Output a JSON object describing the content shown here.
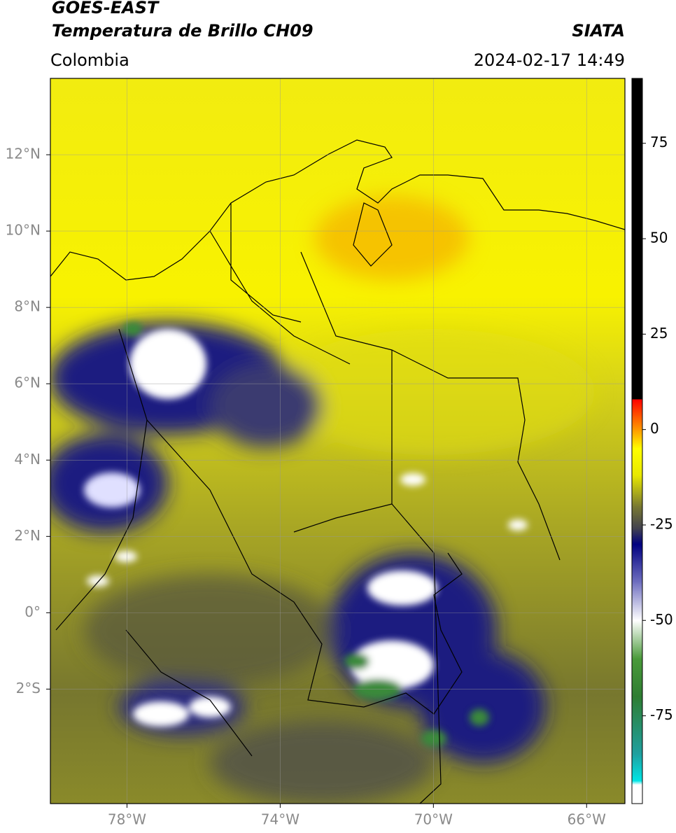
{
  "header": {
    "title_lines": [
      "GOES-EAST",
      "Temperatura de Brillo CH09"
    ],
    "source": "SIATA",
    "region": "Colombia",
    "timestamp": "2024-02-17 14:49"
  },
  "map": {
    "xlim": [
      -80,
      -65
    ],
    "xticks": [
      {
        "value": -78,
        "label": "78°W"
      },
      {
        "value": -74,
        "label": "74°W"
      },
      {
        "value": -70,
        "label": "70°W"
      },
      {
        "value": -66,
        "label": "66°W"
      }
    ],
    "ylim": [
      -5,
      14
    ],
    "yticks": [
      {
        "value": 12,
        "label": "12°N"
      },
      {
        "value": 10,
        "label": "10°N"
      },
      {
        "value": 8,
        "label": "8°N"
      },
      {
        "value": 6,
        "label": "6°N"
      },
      {
        "value": 4,
        "label": "4°N"
      },
      {
        "value": 2,
        "label": "2°N"
      },
      {
        "value": 0,
        "label": "0°"
      },
      {
        "value": -2,
        "label": "2°S"
      }
    ],
    "grid": true
  },
  "colorbar": {
    "lim": [
      -98,
      92
    ],
    "ticks": [
      75,
      50,
      25,
      0,
      -25,
      -50,
      -75
    ],
    "stops": [
      {
        "value": -98,
        "color": "#ffffff"
      },
      {
        "value": -93,
        "color": "#ffffff"
      },
      {
        "value": -92,
        "color": "#00e5e5"
      },
      {
        "value": -85,
        "color": "#1fa0a0"
      },
      {
        "value": -70,
        "color": "#2e7d32"
      },
      {
        "value": -60,
        "color": "#4a9a3a"
      },
      {
        "value": -50,
        "color": "#ffffff"
      },
      {
        "value": -40,
        "color": "#7070c0"
      },
      {
        "value": -30,
        "color": "#000080"
      },
      {
        "value": -26,
        "color": "#404050"
      },
      {
        "value": -20,
        "color": "#7a7a30"
      },
      {
        "value": -12,
        "color": "#e8e800"
      },
      {
        "value": -5,
        "color": "#ffff00"
      },
      {
        "value": 0,
        "color": "#ff9900"
      },
      {
        "value": 8,
        "color": "#ff0000"
      },
      {
        "value": 8.01,
        "color": "#000000"
      },
      {
        "value": 92,
        "color": "#000000"
      }
    ]
  }
}
